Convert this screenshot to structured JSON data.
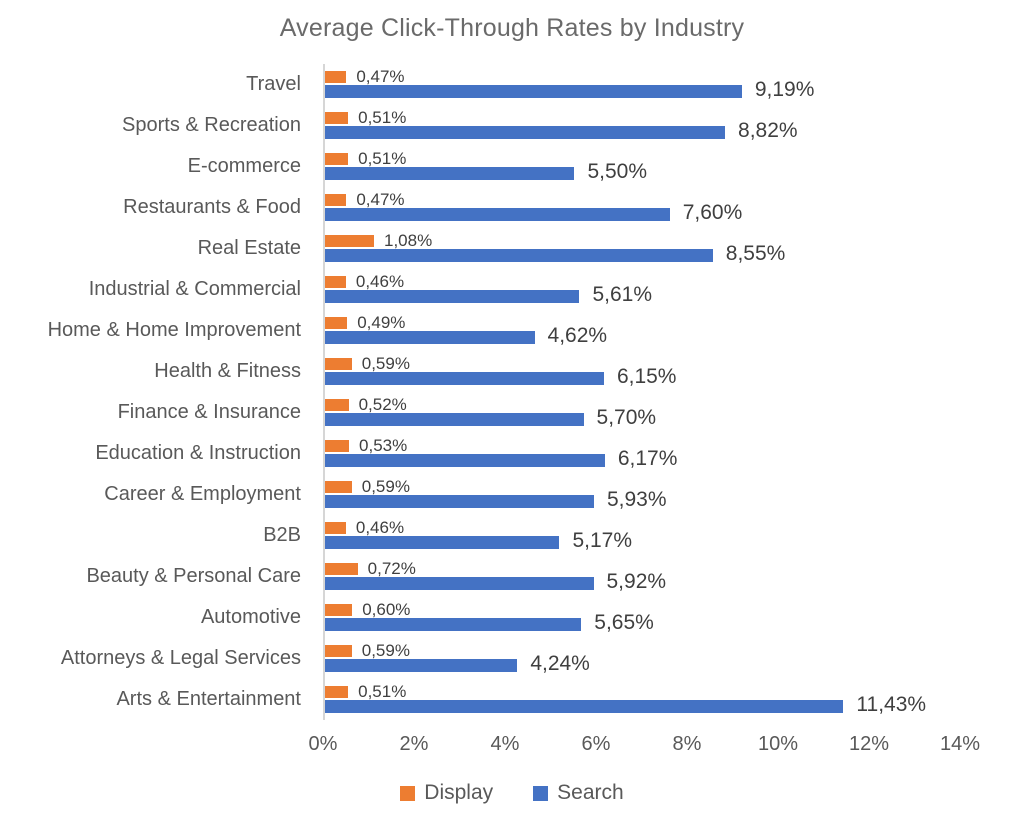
{
  "title": "Average Click-Through Rates by Industry",
  "chart_data": {
    "type": "bar",
    "orientation": "horizontal",
    "title": "Average Click-Through Rates by Industry",
    "xlabel": "",
    "ylabel": "",
    "xlim": [
      0,
      14
    ],
    "x_ticks": [
      "0%",
      "2%",
      "4%",
      "6%",
      "8%",
      "10%",
      "12%",
      "14%"
    ],
    "grid": false,
    "legend_position": "bottom",
    "categories": [
      "Travel",
      "Sports & Recreation",
      "E-commerce",
      "Restaurants & Food",
      "Real Estate",
      "Industrial & Commercial",
      "Home & Home Improvement",
      "Health & Fitness",
      "Finance & Insurance",
      "Education & Instruction",
      "Career & Employment",
      "B2B",
      "Beauty & Personal Care",
      "Automotive",
      "Attorneys & Legal Services",
      "Arts & Entertainment"
    ],
    "series": [
      {
        "name": "Display",
        "color": "#ED7D31",
        "values": [
          0.47,
          0.51,
          0.51,
          0.47,
          1.08,
          0.46,
          0.49,
          0.59,
          0.52,
          0.53,
          0.59,
          0.46,
          0.72,
          0.6,
          0.59,
          0.51
        ],
        "labels": [
          "0,47%",
          "0,51%",
          "0,51%",
          "0,47%",
          "1,08%",
          "0,46%",
          "0,49%",
          "0,59%",
          "0,52%",
          "0,53%",
          "0,59%",
          "0,46%",
          "0,72%",
          "0,60%",
          "0,59%",
          "0,51%"
        ]
      },
      {
        "name": "Search",
        "color": "#4472C4",
        "values": [
          9.19,
          8.82,
          5.5,
          7.6,
          8.55,
          5.61,
          4.62,
          6.15,
          5.7,
          6.17,
          5.93,
          5.17,
          5.92,
          5.65,
          4.24,
          11.43
        ],
        "labels": [
          "9,19%",
          "8,82%",
          "5,50%",
          "7,60%",
          "8,55%",
          "5,61%",
          "4,62%",
          "6,15%",
          "5,70%",
          "6,17%",
          "5,93%",
          "5,17%",
          "5,92%",
          "5,65%",
          "4,24%",
          "11,43%"
        ]
      }
    ]
  },
  "colors": {
    "display_series": "#ED7D31",
    "search_series": "#4472C4",
    "axis_line": "#d6d6d6",
    "text_muted": "#595959",
    "text_value": "#3f3f3f"
  }
}
